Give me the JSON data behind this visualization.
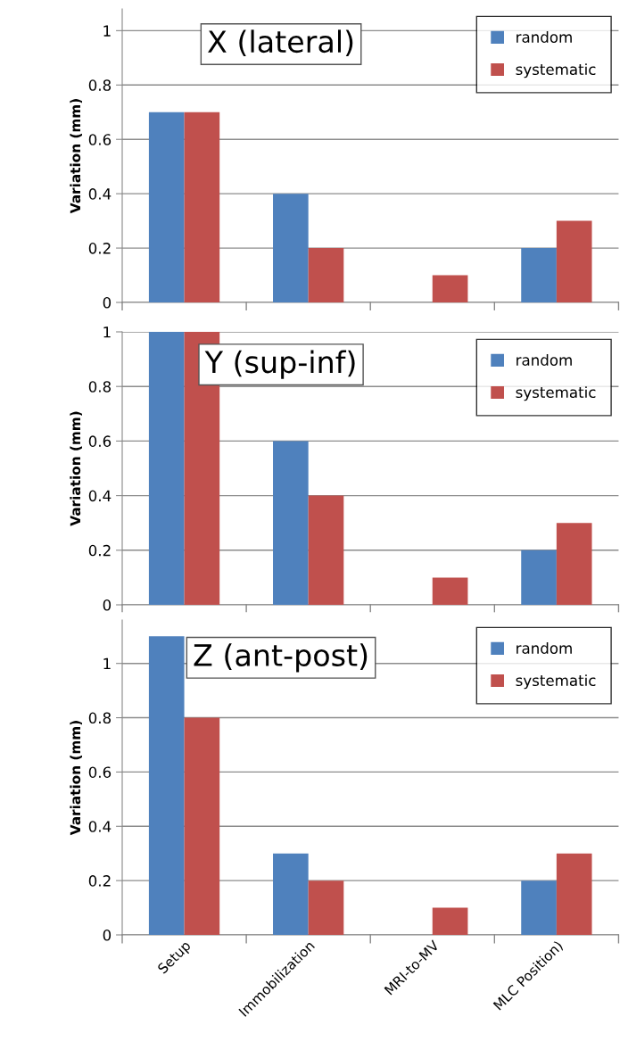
{
  "chart_data": [
    {
      "type": "bar",
      "title": "X (lateral)",
      "ylabel": "Variation (mm)",
      "categories": [
        null,
        null,
        null,
        null
      ],
      "series": [
        {
          "name": "random",
          "color": "#4f81bd",
          "values": [
            0.7,
            0.4,
            null,
            0.2
          ]
        },
        {
          "name": "systematic",
          "color": "#c0504d",
          "values": [
            0.7,
            0.2,
            0.1,
            0.3
          ]
        }
      ],
      "ylim": [
        0,
        1.08
      ],
      "yticks": [
        0,
        0.2,
        0.4,
        0.6,
        0.8,
        1
      ],
      "grid": "y",
      "legend": "top right",
      "tick_labels": "y"
    },
    {
      "type": "bar",
      "title": "Y (sup-inf)",
      "ylabel": "Variation (mm)",
      "categories": [
        null,
        null,
        null,
        null
      ],
      "series": [
        {
          "name": "random",
          "color": "#4f81bd",
          "values": [
            1,
            0.6,
            null,
            0.2
          ]
        },
        {
          "name": "systematic",
          "color": "#c0504d",
          "values": [
            1,
            0.4,
            0.1,
            0.3
          ]
        }
      ],
      "ylim": [
        0,
        1.0
      ],
      "yticks": [
        0,
        0.2,
        0.4,
        0.6,
        0.8,
        1
      ],
      "grid": "y",
      "legend": "top right",
      "tick_labels": "y"
    },
    {
      "type": "bar",
      "title": "Z (ant-post)",
      "ylabel": "Variation (mm)",
      "categories": [
        "Setup",
        "Immobilization",
        "MRI-to-MV",
        "MLC Position)"
      ],
      "series": [
        {
          "name": "random",
          "color": "#4f81bd",
          "values": [
            1.1,
            0.3,
            null,
            0.2
          ]
        },
        {
          "name": "systematic",
          "color": "#c0504d",
          "values": [
            0.8,
            0.2,
            0.1,
            0.3
          ]
        }
      ],
      "ylim": [
        0,
        1.16
      ],
      "yticks": [
        0,
        0.2,
        0.4,
        0.6,
        0.8,
        1
      ],
      "grid": "y",
      "legend": "top right"
    }
  ]
}
